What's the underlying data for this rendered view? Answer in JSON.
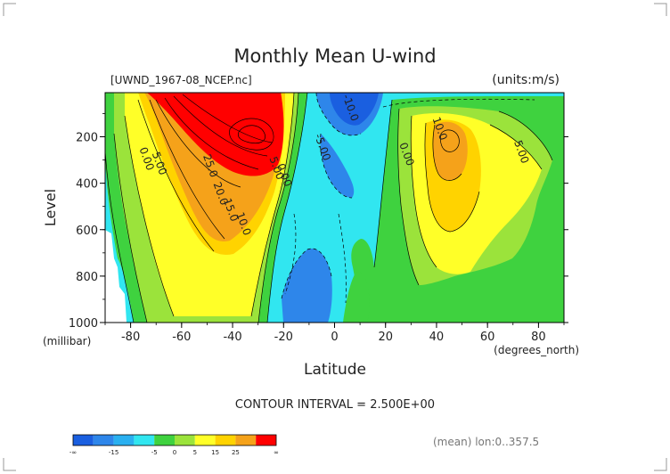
{
  "chart_data": {
    "type": "contour",
    "title": "Monthly Mean U-wind",
    "subtitle_left": "[UWND_1967-08_NCEP.nc]",
    "subtitle_right": "(units:m/s)",
    "xlabel": "Latitude",
    "xlabel_units": "(degrees_north)",
    "ylabel": "Level",
    "ylabel_units": "(millibar)",
    "xlim": [
      -90,
      90
    ],
    "ylim": [
      1000,
      10
    ],
    "x_ticks": [
      -80,
      -60,
      -40,
      -20,
      0,
      20,
      40,
      60,
      80
    ],
    "y_ticks": [
      200,
      400,
      600,
      800,
      1000
    ],
    "contour_interval_text": "CONTOUR INTERVAL = 2.500E+00",
    "footer_text": "(mean) lon:0..357.5",
    "contour_labels": [
      {
        "text": "0.00",
        "lat": -75,
        "lev": 300
      },
      {
        "text": "5.00",
        "lat": -70,
        "lev": 320
      },
      {
        "text": "25.0",
        "lat": -50,
        "lev": 330
      },
      {
        "text": "20.0",
        "lat": -46,
        "lev": 450
      },
      {
        "text": "15.0",
        "lat": -42,
        "lev": 520
      },
      {
        "text": "10.0",
        "lat": -37,
        "lev": 580
      },
      {
        "text": "5.00",
        "lat": -24,
        "lev": 340
      },
      {
        "text": "0.00",
        "lat": -21,
        "lev": 370
      },
      {
        "text": "-5.00",
        "lat": -6,
        "lev": 250
      },
      {
        "text": "-10.0",
        "lat": 5,
        "lev": 80
      },
      {
        "text": "0.00",
        "lat": 27,
        "lev": 280
      },
      {
        "text": "10.0",
        "lat": 40,
        "lev": 170
      },
      {
        "text": "5.00",
        "lat": 72,
        "lev": 270
      }
    ],
    "colorbar": {
      "colors": [
        "#1a5fe0",
        "#2e86ea",
        "#2ab0f0",
        "#31e6f0",
        "#3fd23f",
        "#9be33b",
        "#ffff28",
        "#ffd300",
        "#f5a21a",
        "#ff0000"
      ],
      "labels": [
        "-∞",
        "-15",
        "-5",
        "0",
        "5",
        "15",
        "25",
        "∞"
      ],
      "label_positions": [
        0,
        0.2,
        0.4,
        0.5,
        0.6,
        0.7,
        0.8,
        1.0
      ]
    }
  }
}
